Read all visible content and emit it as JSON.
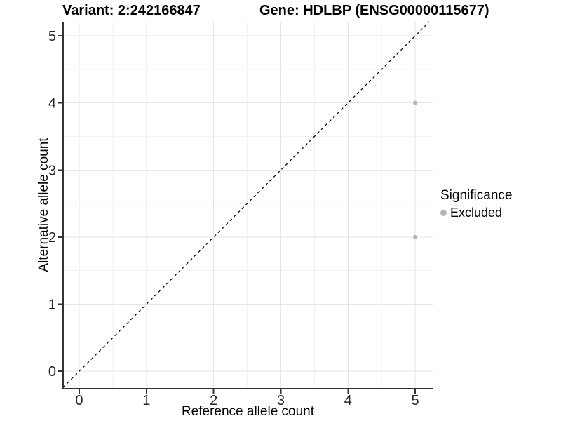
{
  "header": {
    "variant_title": "Variant: 2:242166847",
    "gene_title": "Gene: HDLBP (ENSG00000115677)"
  },
  "legend": {
    "title": "Significance",
    "items": [
      {
        "label": "Excluded",
        "color": "#b4b4b4"
      }
    ]
  },
  "chart_data": {
    "type": "scatter",
    "title": "Variant: 2:242166847 / Gene: HDLBP (ENSG00000115677)",
    "xlabel": "Reference allele count",
    "ylabel": "Alternative allele count",
    "xlim": [
      -0.24,
      5.26
    ],
    "ylim": [
      -0.25,
      5.21
    ],
    "xticks": [
      0,
      1,
      2,
      3,
      4,
      5
    ],
    "yticks": [
      0,
      1,
      2,
      3,
      4,
      5
    ],
    "grid": "major+minor",
    "legend_position": "right",
    "identity_line": {
      "type": "abline",
      "slope": 1,
      "intercept": 0,
      "style": "dashed",
      "color": "#000000"
    },
    "series": [
      {
        "name": "Excluded",
        "color": "#b4b4b4",
        "points": [
          {
            "x": 5,
            "y": 4
          },
          {
            "x": 5,
            "y": 2
          }
        ]
      }
    ]
  },
  "style": {
    "background": "#ffffff",
    "major_grid_color": "#e6e6e6",
    "minor_grid_color": "#f2f2f2",
    "axis_line_color": "#333333",
    "tick_mark_color": "#333333",
    "tick_label_color": "#262626",
    "point_color": "#b4b4b4",
    "dashed_line_color": "#000000"
  }
}
